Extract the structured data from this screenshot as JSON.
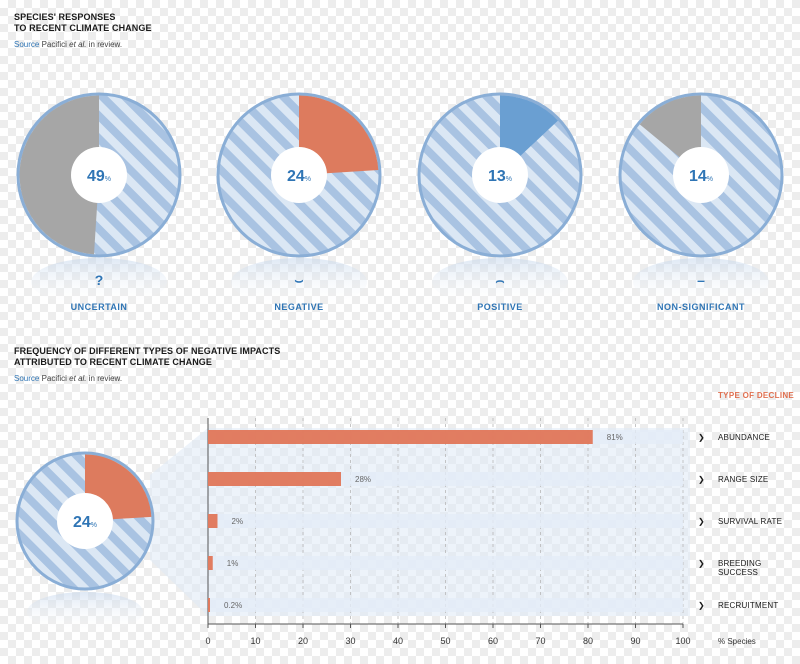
{
  "section1": {
    "title_line1": "SPECIES' RESPONSES",
    "title_line2": "TO RECENT CLIMATE CHANGE",
    "source_word": "Source",
    "source_author": "Pacifici",
    "source_etal": "et al.",
    "source_rest": "in review."
  },
  "section2": {
    "title_line1": "FREQUENCY OF DIFFERENT TYPES OF NEGATIVE IMPACTS",
    "title_line2": "ATTRIBUTED TO RECENT CLIMATE CHANGE",
    "source_word": "Source",
    "source_author": "Pacifici",
    "source_etal": "et al.",
    "source_rest": "in review."
  },
  "colors": {
    "stripe_light": "#a9c3e2",
    "stripe_pale": "#dbe7f4",
    "ring": "#8aaed6",
    "uncertain": "#a6a6a6",
    "negative": "#dd7b5e",
    "positive": "#6a9fd2",
    "nonsignificant": "#a6a6a6",
    "bar": "#e07050",
    "accent_text": "#2f75b5"
  },
  "chart_data": [
    {
      "type": "pie",
      "title": "SPECIES' RESPONSES TO RECENT CLIMATE CHANGE",
      "series": [
        {
          "name": "UNCERTAIN",
          "symbol": "?",
          "value": 49,
          "label": "49",
          "unit": "%"
        },
        {
          "name": "NEGATIVE",
          "symbol": "⌣",
          "value": 24,
          "label": "24",
          "unit": "%"
        },
        {
          "name": "POSITIVE",
          "symbol": "⌢",
          "value": 13,
          "label": "13",
          "unit": "%"
        },
        {
          "name": "NON-SIGNIFICANT",
          "symbol": "–",
          "value": 14,
          "label": "14",
          "unit": "%"
        }
      ]
    },
    {
      "type": "bar",
      "title": "FREQUENCY OF DIFFERENT TYPES OF NEGATIVE IMPACTS ATTRIBUTED TO RECENT CLIMATE CHANGE",
      "legend_title": "TYPE OF DECLINE",
      "inset_value": 24,
      "inset_label": "24",
      "inset_unit": "%",
      "categories": [
        "ABUNDANCE",
        "RANGE SIZE",
        "SURVIVAL RATE",
        "BREEDING SUCCESS",
        "RECRUITMENT"
      ],
      "values": [
        81,
        28,
        2,
        1,
        0.2
      ],
      "value_labels": [
        "81%",
        "28%",
        "2%",
        "1%",
        "0.2%"
      ],
      "xlabel": "% Species",
      "xlim": [
        0,
        100
      ],
      "xticks": [
        0,
        10,
        20,
        30,
        40,
        50,
        60,
        70,
        80,
        90,
        100
      ],
      "grid": true
    }
  ]
}
